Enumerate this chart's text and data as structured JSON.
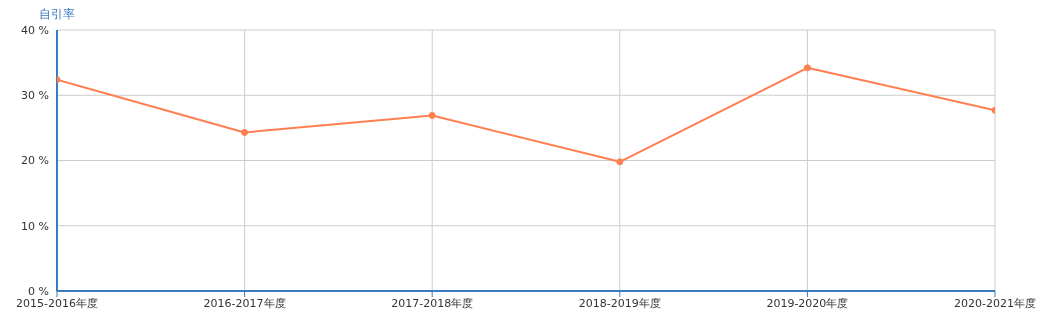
{
  "chart_data": {
    "type": "line",
    "ylabel": "自引率",
    "categories": [
      "2015-2016年度",
      "2016-2017年度",
      "2017-2018年度",
      "2018-2019年度",
      "2019-2020年度",
      "2020-2021年度"
    ],
    "series": [
      {
        "color": "#ff7f50",
        "values": [
          32.4,
          24.3,
          26.9,
          19.8,
          34.2,
          27.7
        ]
      }
    ],
    "ylim": [
      0,
      40
    ],
    "yticks": [
      {
        "value": 0,
        "label": "0 %"
      },
      {
        "value": 10,
        "label": "10 %"
      },
      {
        "value": 20,
        "label": "20 %"
      },
      {
        "value": 30,
        "label": "30 %"
      },
      {
        "value": 40,
        "label": "40 %"
      }
    ],
    "grid": true,
    "marker": "circle",
    "line_style": "solid"
  }
}
